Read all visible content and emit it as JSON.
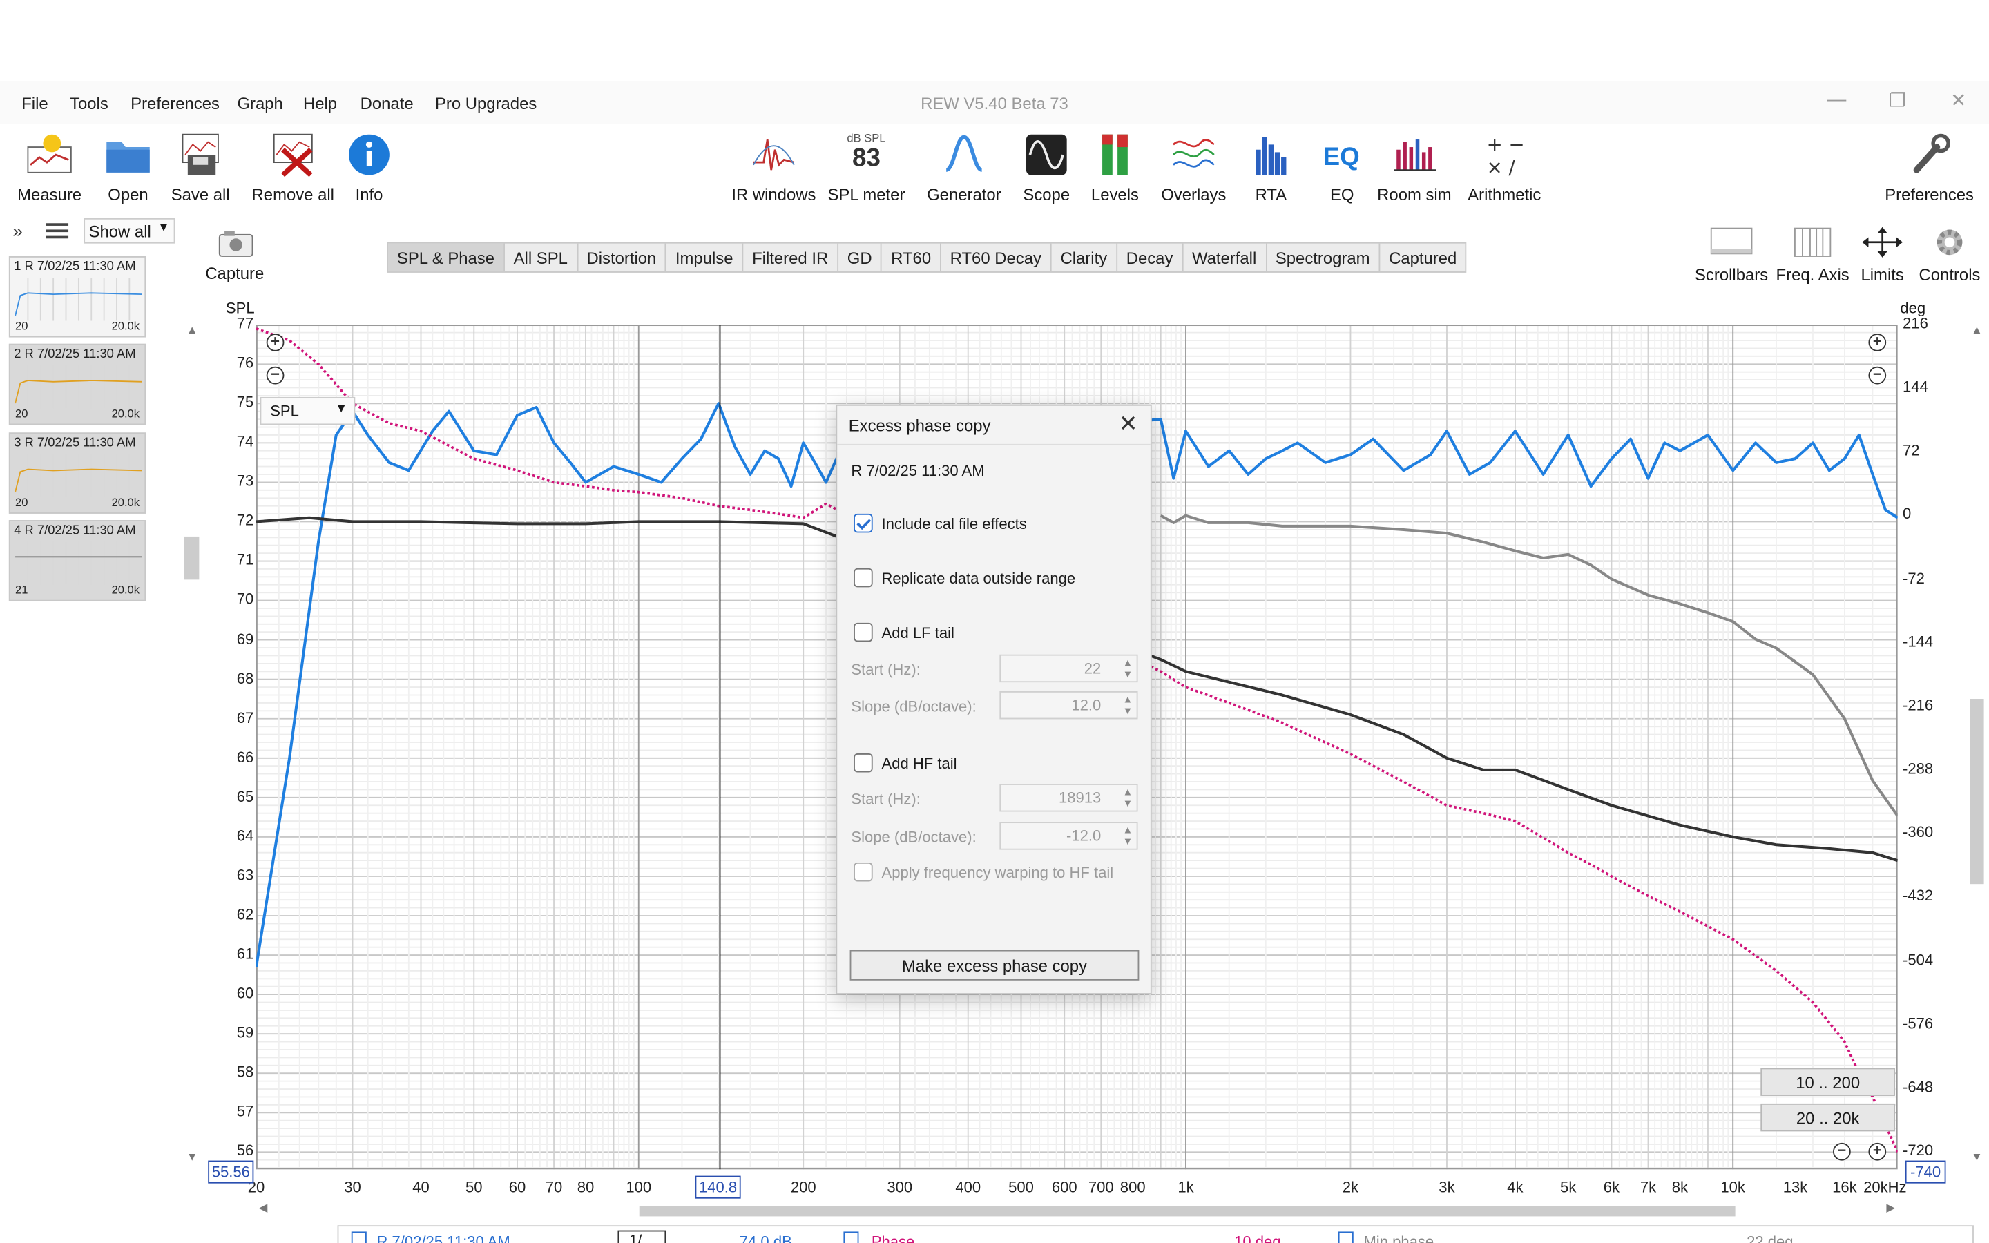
{
  "window": {
    "title": "REW V5.40 Beta 73",
    "minimize": "—",
    "restore": "❐",
    "close": "✕"
  },
  "menu": [
    "File",
    "Tools",
    "Preferences",
    "Graph",
    "Help",
    "Donate",
    "Pro Upgrades"
  ],
  "toolbar_left": {
    "measure": "Measure",
    "open": "Open",
    "save_all": "Save all",
    "remove_all": "Remove all",
    "info": "Info"
  },
  "toolbar_center": {
    "ir_windows": "IR windows",
    "spl_meter": "SPL meter",
    "spl_meter_unit": "dB SPL",
    "spl_meter_value": "83",
    "generator": "Generator",
    "scope": "Scope",
    "levels": "Levels",
    "overlays": "Overlays",
    "rta": "RTA",
    "eq": "EQ",
    "room_sim": "Room sim",
    "arithmetic": "Arithmetic"
  },
  "toolbar_right": {
    "preferences": "Preferences",
    "scrollbars": "Scrollbars",
    "freq_axis": "Freq. Axis",
    "limits": "Limits",
    "controls": "Controls"
  },
  "sidebar": {
    "show_all": "Show all",
    "capture": "Capture",
    "measurements": [
      {
        "title": "1 R 7/02/25 11:30 AM",
        "start": "20",
        "end": "20.0k",
        "color": "#3a8de0"
      },
      {
        "title": "2 R 7/02/25 11:30 AM",
        "start": "20",
        "end": "20.0k",
        "color": "#e0a020"
      },
      {
        "title": "3 R 7/02/25 11:30 AM",
        "start": "20",
        "end": "20.0k",
        "color": "#e0a020"
      },
      {
        "title": "4 R 7/02/25 11:30 AM",
        "start": "21",
        "end": "20.0k",
        "color": "#7a7a7a"
      }
    ]
  },
  "tabs": [
    "SPL & Phase",
    "All SPL",
    "Distortion",
    "Impulse",
    "Filtered IR",
    "GD",
    "RT60",
    "RT60 Decay",
    "Clarity",
    "Decay",
    "Waterfall",
    "Spectrogram",
    "Captured"
  ],
  "active_tab": "SPL & Phase",
  "graph": {
    "left_axis_title": "SPL",
    "right_axis_title": "deg",
    "spl_dropdown": "SPL",
    "cursor_readout_y": "55.56",
    "cursor_readout_x": "140.8",
    "cursor_readout_right": "-740",
    "left_ticks": [
      "77",
      "76",
      "75",
      "74",
      "73",
      "72",
      "71",
      "70",
      "69",
      "68",
      "67",
      "66",
      "65",
      "64",
      "63",
      "62",
      "61",
      "60",
      "59",
      "58",
      "57",
      "56"
    ],
    "right_ticks": [
      "216",
      "144",
      "72",
      "0",
      "-72",
      "-144",
      "-216",
      "-288",
      "-360",
      "-432",
      "-504",
      "-576",
      "-648",
      "-720"
    ],
    "x_ticks": [
      "20",
      "30",
      "40",
      "50",
      "60",
      "70",
      "80",
      "100",
      "200",
      "300",
      "400",
      "500",
      "600",
      "700",
      "800",
      "1k",
      "2k",
      "3k",
      "4k",
      "5k",
      "6k",
      "7k",
      "8k",
      "10k",
      "13k",
      "16k",
      "20kHz"
    ],
    "range_buttons": [
      "10 .. 200",
      "20 .. 20k"
    ]
  },
  "chart_data": {
    "type": "line",
    "x_scale": "log",
    "xlim": [
      20,
      20000
    ],
    "ylim_left": [
      55.56,
      77
    ],
    "ylim_right": [
      -740,
      216
    ],
    "xlabel": "",
    "ylabel": "SPL",
    "ylabel_right": "deg",
    "grid": true,
    "cursor_x": 140.8,
    "series": [
      {
        "color": "#1f7fe0",
        "axis": "left",
        "x": [
          20,
          23,
          26,
          28,
          30,
          32,
          35,
          38,
          42,
          45,
          50,
          55,
          60,
          65,
          70,
          75,
          80,
          90,
          100,
          110,
          120,
          130,
          140,
          150,
          160,
          170,
          180,
          190,
          200,
          210,
          220,
          230,
          240,
          900,
          950,
          1000,
          1100,
          1200,
          1300,
          1400,
          1500,
          1600,
          1800,
          2000,
          2200,
          2500,
          2800,
          3000,
          3300,
          3600,
          4000,
          4500,
          5000,
          5500,
          6000,
          6500,
          7000,
          7500,
          8000,
          9000,
          10000,
          11000,
          12000,
          13000,
          14000,
          15000,
          16000,
          17000,
          18000,
          19000,
          20000
        ],
        "y": [
          60.7,
          66,
          71.5,
          74.2,
          74.8,
          74.2,
          73.5,
          73.3,
          74.3,
          74.8,
          73.8,
          73.7,
          74.7,
          74.9,
          74.0,
          73.5,
          73.0,
          73.4,
          73.2,
          73.0,
          73.6,
          74.1,
          75.0,
          73.9,
          73.2,
          73.8,
          73.6,
          72.9,
          74.0,
          73.5,
          73.0,
          73.6,
          74.0,
          74.6,
          73.1,
          74.3,
          73.4,
          73.8,
          73.2,
          73.6,
          73.8,
          74.0,
          73.5,
          73.7,
          74.1,
          73.3,
          73.7,
          74.3,
          73.2,
          73.5,
          74.3,
          73.2,
          74.2,
          72.9,
          73.6,
          74.1,
          73.1,
          74.0,
          73.8,
          74.2,
          73.3,
          74.0,
          73.5,
          73.6,
          74.0,
          73.3,
          73.6,
          74.2,
          73.2,
          72.3,
          72.1
        ]
      },
      {
        "color": "#333333",
        "axis": "left",
        "x": [
          20,
          25,
          30,
          40,
          50,
          60,
          80,
          100,
          140,
          200,
          900,
          1000,
          1500,
          2000,
          2500,
          3000,
          3500,
          4000,
          5000,
          6000,
          8000,
          10000,
          12000,
          15000,
          18000,
          20000
        ],
        "y": [
          72.0,
          72.1,
          72.0,
          72.0,
          71.97,
          71.95,
          71.95,
          72.0,
          72.0,
          71.95,
          68.5,
          68.2,
          67.6,
          67.1,
          66.6,
          66.0,
          65.7,
          65.7,
          65.2,
          64.8,
          64.3,
          64.0,
          63.8,
          63.7,
          63.6,
          63.4
        ]
      },
      {
        "color": "#d0157a",
        "axis": "left",
        "dashed": true,
        "x": [
          20,
          23,
          26,
          30,
          35,
          40,
          50,
          60,
          70,
          80,
          90,
          100,
          120,
          140,
          160,
          180,
          200,
          220,
          900,
          1000,
          1200,
          1500,
          2000,
          2500,
          3000,
          3500,
          4000,
          5000,
          5500,
          6000,
          7000,
          8000,
          10000,
          12000,
          14000,
          16000,
          17000,
          18000,
          20000
        ],
        "y": [
          76.9,
          76.6,
          76.0,
          75.0,
          74.5,
          74.3,
          73.6,
          73.3,
          73.0,
          72.9,
          72.8,
          72.75,
          72.6,
          72.4,
          72.3,
          72.2,
          72.1,
          72.45,
          68.2,
          67.8,
          67.4,
          66.9,
          66.1,
          65.4,
          64.8,
          64.6,
          64.4,
          63.6,
          63.3,
          63.0,
          62.5,
          62.1,
          61.4,
          60.6,
          59.8,
          58.8,
          58.0,
          57.4,
          56.0
        ]
      },
      {
        "color": "#888888",
        "axis": "right",
        "x": [
          900,
          950,
          1000,
          1100,
          1300,
          1500,
          2000,
          2500,
          3000,
          3500,
          4000,
          4500,
          5000,
          5500,
          6000,
          7000,
          8000,
          9000,
          10000,
          11000,
          12000,
          14000,
          16000,
          18000,
          20000
        ],
        "y": [
          0,
          -8,
          0,
          -8,
          -8,
          -12,
          -12,
          -16,
          -20,
          -30,
          -40,
          -48,
          -44,
          -56,
          -72,
          -90,
          -100,
          -110,
          -120,
          -140,
          -150,
          -180,
          -230,
          -300,
          -340
        ]
      }
    ]
  },
  "dialog": {
    "title": "Excess phase copy",
    "close": "✕",
    "measurement": "R 7/02/25 11:30 AM",
    "include_cal": "Include cal file effects",
    "include_cal_checked": true,
    "replicate": "Replicate data outside range",
    "replicate_checked": false,
    "add_lf_tail": "Add LF tail",
    "add_lf_tail_checked": false,
    "lf_start_label": "Start (Hz):",
    "lf_start_value": "22",
    "lf_slope_label": "Slope (dB/octave):",
    "lf_slope_value": "12.0",
    "add_hf_tail": "Add HF tail",
    "add_hf_tail_checked": false,
    "hf_start_label": "Start (Hz):",
    "hf_start_value": "18913",
    "hf_slope_label": "Slope (dB/octave):",
    "hf_slope_value": "-12.0",
    "warp": "Apply frequency warping to HF tail",
    "warp_checked": false,
    "make_button": "Make excess phase copy"
  },
  "legend_bar": {
    "measurement": "R 7/02/25 11:30 AM",
    "smoothing": "1/...",
    "spl_value": "74.0 dB",
    "phase_label": "Phase",
    "phase_value": "10 deg",
    "min_phase_label": "Min phase",
    "min_phase_value": "22 deg"
  }
}
